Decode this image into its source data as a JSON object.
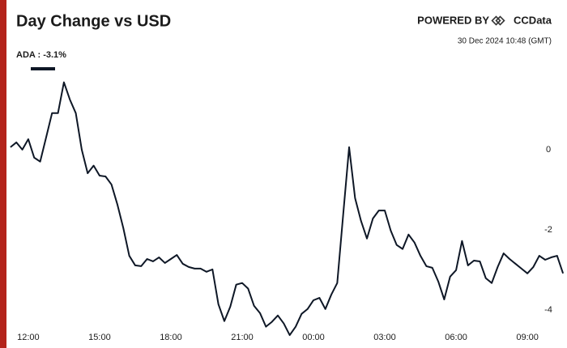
{
  "chart_data": {
    "type": "line",
    "title": "Day Change vs USD",
    "branding": "POWERED BY",
    "brand": "CCData",
    "timestamp": "30 Dec 2024 10:48 (GMT)",
    "x": [
      675,
      690,
      705,
      720,
      735,
      750,
      765,
      780,
      795,
      810,
      825,
      840,
      855,
      870,
      885,
      900,
      915,
      930,
      945,
      960,
      975,
      990,
      1005,
      1020,
      1035,
      1050,
      1065,
      1080,
      1095,
      1110,
      1125,
      1140,
      1155,
      1170,
      1185,
      1200,
      1215,
      1230,
      1245,
      1260,
      1275,
      1290,
      1305,
      1320,
      1335,
      1350,
      1365,
      1380,
      1395,
      1410,
      1425,
      1440,
      1455,
      1470,
      1485,
      1500,
      1515,
      1530,
      1545,
      1560,
      1575,
      1590,
      1605,
      1620,
      1635,
      1650,
      1665,
      1680,
      1695,
      1710,
      1725,
      1740,
      1755,
      1770,
      1785,
      1800,
      1815,
      1830,
      1845,
      1860,
      1875,
      1890,
      1905,
      1920,
      1935,
      1950,
      1965,
      1980,
      1995,
      2010,
      2025,
      2040,
      2055,
      2070
    ],
    "series": [
      {
        "name": "ADA : -3.1%",
        "color": "#0e1726",
        "values": [
          0.06,
          0.18,
          0,
          0.26,
          -0.2,
          -0.3,
          0.3,
          0.91,
          0.91,
          1.68,
          1.25,
          0.91,
          0,
          -0.59,
          -0.4,
          -0.65,
          -0.67,
          -0.87,
          -1.37,
          -1.96,
          -2.65,
          -2.89,
          -2.91,
          -2.73,
          -2.79,
          -2.69,
          -2.83,
          -2.73,
          -2.63,
          -2.85,
          -2.93,
          -2.97,
          -2.97,
          -3.05,
          -2.99,
          -3.86,
          -4.28,
          -3.92,
          -3.37,
          -3.33,
          -3.47,
          -3.9,
          -4.08,
          -4.42,
          -4.3,
          -4.14,
          -4.34,
          -4.63,
          -4.42,
          -4.1,
          -3.98,
          -3.76,
          -3.7,
          -3.98,
          -3.62,
          -3.33,
          -1.62,
          0.06,
          -1.21,
          -1.78,
          -2.22,
          -1.72,
          -1.52,
          -1.52,
          -2.02,
          -2.38,
          -2.48,
          -2.12,
          -2.32,
          -2.65,
          -2.91,
          -2.95,
          -3.29,
          -3.74,
          -3.17,
          -3.01,
          -2.28,
          -2.89,
          -2.77,
          -2.79,
          -3.21,
          -3.33,
          -2.93,
          -2.59,
          -2.73,
          -2.85,
          -2.97,
          -3.09,
          -2.93,
          -2.65,
          -2.75,
          -2.69,
          -2.65,
          -3.09
        ]
      }
    ],
    "xlim": [
      665,
      2080
    ],
    "xticks": [
      {
        "value": 720,
        "label": "12:00"
      },
      {
        "value": 900,
        "label": "15:00"
      },
      {
        "value": 1080,
        "label": "18:00"
      },
      {
        "value": 1260,
        "label": "21:00"
      },
      {
        "value": 1440,
        "label": "00:00"
      },
      {
        "value": 1620,
        "label": "03:00"
      },
      {
        "value": 1800,
        "label": "06:00"
      },
      {
        "value": 1980,
        "label": "09:00"
      }
    ],
    "ylim": [
      -4.75,
      2.3
    ],
    "yticks": [
      -4,
      -2,
      0
    ],
    "grid": false
  }
}
